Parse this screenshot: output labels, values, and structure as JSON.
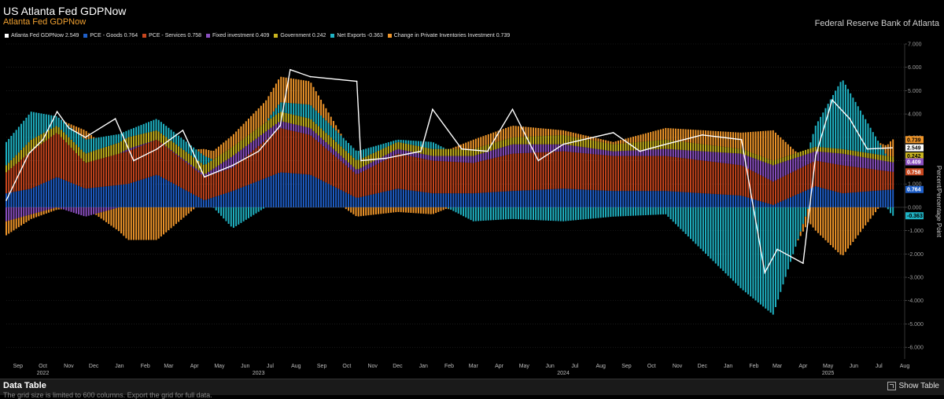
{
  "header": {
    "title": "US Atlanta Fed GDPNow",
    "subtitle": "Atlanta Fed GDPNow",
    "source": "Federal Reserve Bank of Atlanta"
  },
  "legend": [
    {
      "label": "Atlanta Fed GDPNow 2.549",
      "color": "#ffffff"
    },
    {
      "label": "PCE - Goods 0.764",
      "color": "#1f5fc9"
    },
    {
      "label": "PCE - Services 0.758",
      "color": "#c8461e"
    },
    {
      "label": "Fixed investment 0.409",
      "color": "#8a4fc0"
    },
    {
      "label": "Government 0.242",
      "color": "#c9b41e"
    },
    {
      "label": "Net Exports -0.363",
      "color": "#1fb3c4"
    },
    {
      "label": "Change in Private Inventories Investment 0.739",
      "color": "#f0962a"
    }
  ],
  "footer": {
    "title": "Data Table",
    "note": "The grid size is limited to 600 columns. Export the grid for full data.",
    "show_table": "Show Table"
  },
  "chart_data": {
    "type": "bar",
    "stacked": true,
    "ylabel": "Percent/Percentage Point",
    "ylim": [
      -6.5,
      7.0
    ],
    "y_ticks": [
      "7.000",
      "6.000",
      "5.000",
      "4.000",
      "3.000",
      "2.000",
      "1.000",
      "0.000",
      "-1.000",
      "-2.000",
      "-3.000",
      "-4.000",
      "-5.000",
      "-6.000"
    ],
    "x_range": [
      "2022-09-01",
      "2025-08-15"
    ],
    "x_tick_labels": [
      {
        "label": "Sep",
        "date": "2022-09-15"
      },
      {
        "label": "Oct",
        "date": "2022-10-15"
      },
      {
        "label": "Nov",
        "date": "2022-11-15"
      },
      {
        "label": "Dec",
        "date": "2022-12-15"
      },
      {
        "label": "Jan",
        "date": "2023-01-15"
      },
      {
        "label": "Feb",
        "date": "2023-02-15"
      },
      {
        "label": "Mar",
        "date": "2023-03-15"
      },
      {
        "label": "Apr",
        "date": "2023-04-15"
      },
      {
        "label": "May",
        "date": "2023-05-15"
      },
      {
        "label": "Jun",
        "date": "2023-06-15"
      },
      {
        "label": "Jul",
        "date": "2023-07-15"
      },
      {
        "label": "Aug",
        "date": "2023-08-15"
      },
      {
        "label": "Sep",
        "date": "2023-09-15"
      },
      {
        "label": "Oct",
        "date": "2023-10-15"
      },
      {
        "label": "Nov",
        "date": "2023-11-15"
      },
      {
        "label": "Dec",
        "date": "2023-12-15"
      },
      {
        "label": "Jan",
        "date": "2024-01-15"
      },
      {
        "label": "Feb",
        "date": "2024-02-15"
      },
      {
        "label": "Mar",
        "date": "2024-03-15"
      },
      {
        "label": "Apr",
        "date": "2024-04-15"
      },
      {
        "label": "May",
        "date": "2024-05-15"
      },
      {
        "label": "Jun",
        "date": "2024-06-15"
      },
      {
        "label": "Jul",
        "date": "2024-07-15"
      },
      {
        "label": "Aug",
        "date": "2024-08-15"
      },
      {
        "label": "Sep",
        "date": "2024-09-15"
      },
      {
        "label": "Oct",
        "date": "2024-10-15"
      },
      {
        "label": "Nov",
        "date": "2024-11-15"
      },
      {
        "label": "Dec",
        "date": "2024-12-15"
      },
      {
        "label": "Jan",
        "date": "2025-01-15"
      },
      {
        "label": "Feb",
        "date": "2025-02-15"
      },
      {
        "label": "Mar",
        "date": "2025-03-15"
      },
      {
        "label": "Apr",
        "date": "2025-04-15"
      },
      {
        "label": "May",
        "date": "2025-05-15"
      },
      {
        "label": "Jun",
        "date": "2025-06-15"
      },
      {
        "label": "Jul",
        "date": "2025-07-15"
      },
      {
        "label": "Aug",
        "date": "2025-08-15"
      }
    ],
    "year_labels": [
      {
        "label": "2022",
        "date": "2022-10-15"
      },
      {
        "label": "2023",
        "date": "2023-07-01"
      },
      {
        "label": "2024",
        "date": "2024-07-01"
      },
      {
        "label": "2025",
        "date": "2025-05-15"
      }
    ],
    "series_order": [
      "PCE - Goods",
      "PCE - Services",
      "Fixed investment",
      "Government",
      "Net Exports",
      "Change in Private Inventories Investment"
    ],
    "colors": {
      "PCE - Goods": "#1f5fc9",
      "PCE - Services": "#c8461e",
      "Fixed investment": "#8a4fc0",
      "Government": "#c9b41e",
      "Net Exports": "#1fb3c4",
      "Change in Private Inventories Investment": "#f0962a",
      "Atlanta Fed GDPNow": "#ffffff"
    },
    "breaks": [
      {
        "date": "2022-09-01",
        "pce_goods": 0.6,
        "pce_services": 0.9,
        "fixed_investment": -0.6,
        "government": 0.3,
        "net_exports": 1.0,
        "inventories": -0.6
      },
      {
        "date": "2022-10-01",
        "pce_goods": 0.8,
        "pce_services": 1.6,
        "fixed_investment": -0.3,
        "government": 0.5,
        "net_exports": 1.2,
        "inventories": -0.2
      },
      {
        "date": "2022-11-01",
        "pce_goods": 1.3,
        "pce_services": 1.9,
        "fixed_investment": 0.0,
        "government": 0.3,
        "net_exports": 0.4,
        "inventories": -0.1
      },
      {
        "date": "2022-12-05",
        "pce_goods": 0.8,
        "pce_services": 1.1,
        "fixed_investment": -0.4,
        "government": 0.4,
        "net_exports": 0.6,
        "inventories": 0.4
      },
      {
        "date": "2023-01-25",
        "pce_goods": 1.0,
        "pce_services": 1.4,
        "fixed_investment": 0.1,
        "government": 0.5,
        "net_exports": 0.3,
        "inventories": -1.4
      },
      {
        "date": "2023-03-01",
        "pce_goods": 1.4,
        "pce_services": 1.5,
        "fixed_investment": 0.0,
        "government": 0.4,
        "net_exports": 0.5,
        "inventories": -1.4
      },
      {
        "date": "2023-04-27",
        "pce_goods": 0.3,
        "pce_services": 1.0,
        "fixed_investment": 0.1,
        "government": 0.4,
        "net_exports": 0.4,
        "inventories": 0.3
      },
      {
        "date": "2023-05-31",
        "pce_goods": 0.7,
        "pce_services": 1.0,
        "fixed_investment": 0.5,
        "government": 0.4,
        "net_exports": -0.9,
        "inventories": 0.5
      },
      {
        "date": "2023-07-27",
        "pce_goods": 1.5,
        "pce_services": 1.9,
        "fixed_investment": 0.3,
        "government": 0.4,
        "net_exports": 0.4,
        "inventories": 1.1
      },
      {
        "date": "2023-09-01",
        "pce_goods": 1.4,
        "pce_services": 1.7,
        "fixed_investment": 0.3,
        "government": 0.4,
        "net_exports": 0.6,
        "inventories": 1.0
      },
      {
        "date": "2023-10-27",
        "pce_goods": 0.4,
        "pce_services": 1.0,
        "fixed_investment": 0.2,
        "government": 0.4,
        "net_exports": 0.4,
        "inventories": -0.4
      },
      {
        "date": "2023-12-15",
        "pce_goods": 0.8,
        "pce_services": 1.5,
        "fixed_investment": 0.2,
        "government": 0.3,
        "net_exports": 0.1,
        "inventories": -0.2
      },
      {
        "date": "2024-01-26",
        "pce_goods": 0.6,
        "pce_services": 1.4,
        "fixed_investment": 0.2,
        "government": 0.3,
        "net_exports": 0.3,
        "inventories": -0.3
      },
      {
        "date": "2024-03-15",
        "pce_goods": 0.6,
        "pce_services": 1.3,
        "fixed_investment": 0.3,
        "government": 0.3,
        "net_exports": -0.6,
        "inventories": 0.4
      },
      {
        "date": "2024-05-01",
        "pce_goods": 0.7,
        "pce_services": 1.6,
        "fixed_investment": 0.4,
        "government": 0.3,
        "net_exports": -0.5,
        "inventories": 0.5
      },
      {
        "date": "2024-07-01",
        "pce_goods": 0.8,
        "pce_services": 1.6,
        "fixed_investment": 0.3,
        "government": 0.4,
        "net_exports": -0.6,
        "inventories": 0.2
      },
      {
        "date": "2024-08-30",
        "pce_goods": 0.7,
        "pce_services": 1.5,
        "fixed_investment": 0.2,
        "government": 0.3,
        "net_exports": -0.4,
        "inventories": 0.1
      },
      {
        "date": "2024-11-01",
        "pce_goods": 0.7,
        "pce_services": 1.5,
        "fixed_investment": 0.3,
        "government": 0.4,
        "net_exports": -0.3,
        "inventories": 0.5
      },
      {
        "date": "2025-01-31",
        "pce_goods": 0.5,
        "pce_services": 1.3,
        "fixed_investment": 0.5,
        "government": 0.2,
        "net_exports": -3.5,
        "inventories": 0.7
      },
      {
        "date": "2025-03-10",
        "pce_goods": 0.1,
        "pce_services": 1.0,
        "fixed_investment": 0.7,
        "government": 0.2,
        "net_exports": -4.6,
        "inventories": 1.3
      },
      {
        "date": "2025-04-30",
        "pce_goods": 0.9,
        "pce_services": 1.1,
        "fixed_investment": 0.4,
        "government": 0.2,
        "net_exports": 0.9,
        "inventories": -1.0
      },
      {
        "date": "2025-06-01",
        "pce_goods": 0.6,
        "pce_services": 1.2,
        "fixed_investment": 0.5,
        "government": 0.2,
        "net_exports": 3.0,
        "inventories": -2.1
      },
      {
        "date": "2025-07-31",
        "pce_goods": 0.764,
        "pce_services": 0.758,
        "fixed_investment": 0.409,
        "government": 0.242,
        "net_exports": -0.363,
        "inventories": 0.739
      }
    ],
    "gdpnow_line": [
      {
        "date": "2022-09-01",
        "value": 0.3
      },
      {
        "date": "2022-09-28",
        "value": 2.3
      },
      {
        "date": "2022-10-15",
        "value": 2.9
      },
      {
        "date": "2022-11-01",
        "value": 4.1
      },
      {
        "date": "2022-11-15",
        "value": 3.4
      },
      {
        "date": "2022-12-05",
        "value": 3.0
      },
      {
        "date": "2023-01-10",
        "value": 3.8
      },
      {
        "date": "2023-02-01",
        "value": 2.0
      },
      {
        "date": "2023-03-01",
        "value": 2.5
      },
      {
        "date": "2023-04-01",
        "value": 3.3
      },
      {
        "date": "2023-04-27",
        "value": 1.3
      },
      {
        "date": "2023-05-31",
        "value": 1.8
      },
      {
        "date": "2023-07-01",
        "value": 2.4
      },
      {
        "date": "2023-07-27",
        "value": 3.5
      },
      {
        "date": "2023-08-08",
        "value": 5.9
      },
      {
        "date": "2023-09-01",
        "value": 5.6
      },
      {
        "date": "2023-10-27",
        "value": 5.4
      },
      {
        "date": "2023-11-01",
        "value": 2.0
      },
      {
        "date": "2023-12-01",
        "value": 2.1
      },
      {
        "date": "2024-01-12",
        "value": 2.4
      },
      {
        "date": "2024-01-26",
        "value": 4.2
      },
      {
        "date": "2024-03-01",
        "value": 2.5
      },
      {
        "date": "2024-04-01",
        "value": 2.4
      },
      {
        "date": "2024-05-01",
        "value": 4.2
      },
      {
        "date": "2024-06-01",
        "value": 2.0
      },
      {
        "date": "2024-07-01",
        "value": 2.7
      },
      {
        "date": "2024-08-30",
        "value": 3.2
      },
      {
        "date": "2024-10-01",
        "value": 2.4
      },
      {
        "date": "2024-11-01",
        "value": 2.7
      },
      {
        "date": "2024-12-15",
        "value": 3.1
      },
      {
        "date": "2025-01-31",
        "value": 2.9
      },
      {
        "date": "2025-02-28",
        "value": -2.8
      },
      {
        "date": "2025-03-15",
        "value": -1.8
      },
      {
        "date": "2025-04-15",
        "value": -2.4
      },
      {
        "date": "2025-04-30",
        "value": 2.2
      },
      {
        "date": "2025-05-20",
        "value": 4.6
      },
      {
        "date": "2025-06-10",
        "value": 3.8
      },
      {
        "date": "2025-07-01",
        "value": 2.5
      },
      {
        "date": "2025-07-31",
        "value": 2.549
      }
    ],
    "value_tags": [
      {
        "text": "0.739",
        "value": 0.739,
        "y_at": 2.9,
        "color": "#f0962a",
        "text_color": "#000000"
      },
      {
        "text": "2.549",
        "value": 2.549,
        "y_at": 2.549,
        "color": "#ffffff",
        "text_color": "#000000"
      },
      {
        "text": "0.242",
        "value": 0.242,
        "y_at": 2.2,
        "color": "#c9b41e",
        "text_color": "#000000"
      },
      {
        "text": "0.409",
        "value": 0.409,
        "y_at": 1.95,
        "color": "#8a4fc0",
        "text_color": "#ffffff"
      },
      {
        "text": "0.758",
        "value": 0.758,
        "y_at": 1.52,
        "color": "#c8461e",
        "text_color": "#ffffff"
      },
      {
        "text": "0.764",
        "value": 0.764,
        "y_at": 0.764,
        "color": "#1f5fc9",
        "text_color": "#ffffff"
      },
      {
        "text": "-0.363",
        "value": -0.363,
        "y_at": -0.363,
        "color": "#1fb3c4",
        "text_color": "#000000"
      }
    ]
  }
}
